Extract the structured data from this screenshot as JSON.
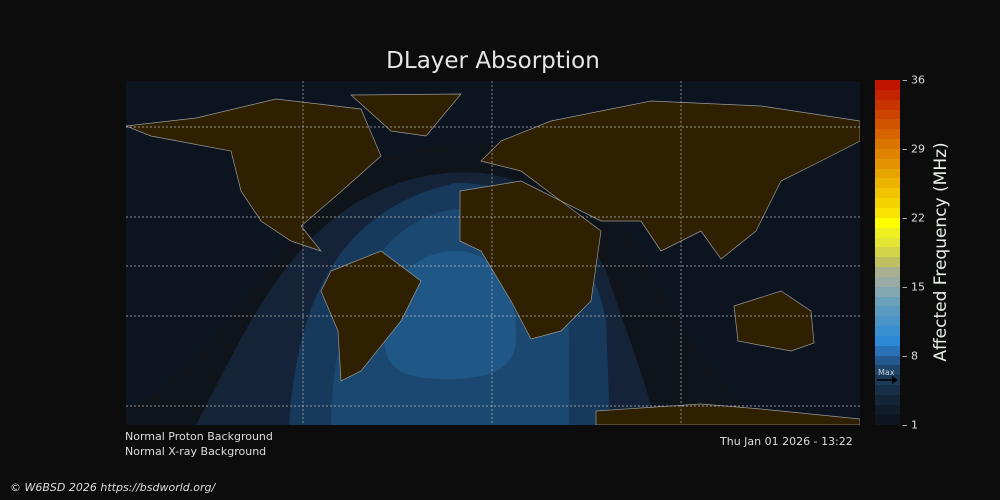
{
  "title": "DLayer Absorption",
  "colorbar": {
    "label": "Affected Frequency (MHz)",
    "ticks": [
      "36",
      "29",
      "22",
      "15",
      "8",
      "1"
    ],
    "range": [
      1,
      36
    ],
    "max_marker": "Max",
    "max_value": 5.5,
    "colors": [
      "#0e1520",
      "#111c2b",
      "#142538",
      "#182f48",
      "#1b3a58",
      "#1e4668",
      "#245a90",
      "#2a72b8",
      "#2e88d8",
      "#3a8fd0",
      "#4a94c8",
      "#5a9ac0",
      "#6aa0b8",
      "#84a6b0",
      "#9aaaa4",
      "#a8b090",
      "#c0c060",
      "#d4d448",
      "#e4e434",
      "#f0f020",
      "#ffff00",
      "#f8e400",
      "#f4d400",
      "#f0c400",
      "#ecb400",
      "#e8a400",
      "#e49400",
      "#e08400",
      "#da7400",
      "#d66400",
      "#d05400",
      "#cc4400",
      "#c83400",
      "#c42400",
      "#c01400"
    ]
  },
  "status": {
    "proton": "Normal Proton Background",
    "xray": "Normal X-ray Background",
    "datetime": "Thu Jan 01 2026 - 13:22"
  },
  "copyright": "© W6BSD 2026 https://bsdworld.org/",
  "colors": {
    "ocean": "#0c1420",
    "land": "#2e2000"
  }
}
